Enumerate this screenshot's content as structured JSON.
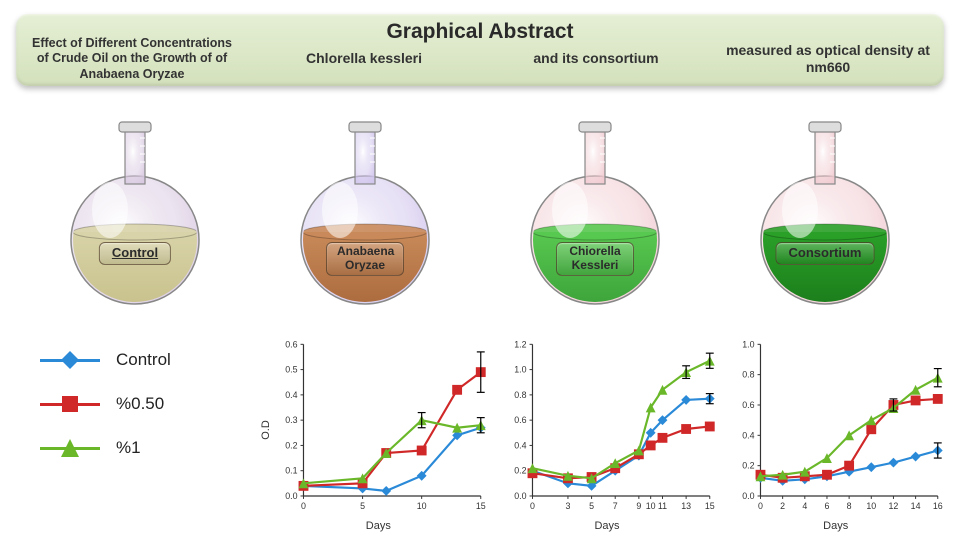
{
  "banner": {
    "title": "Graphical Abstract",
    "cells": [
      "Effect of Different Concentrations of Crude Oil on the Growth of of Anabaena Oryzae",
      "Chlorella kessleri",
      "and its consortium",
      "measured as optical density at nm660"
    ]
  },
  "flasks": [
    {
      "label": "Control",
      "liquid_top": "#d8d3a8",
      "liquid_bot": "#c7c08a",
      "glass": "#d8c8e0",
      "two": false
    },
    {
      "label": "Anabaena Oryzae",
      "liquid_top": "#c98a5a",
      "liquid_bot": "#a8683a",
      "glass": "#d0c4ec",
      "two": true
    },
    {
      "label": "Chiorella Kessleri",
      "liquid_top": "#58c850",
      "liquid_bot": "#3aa038",
      "glass": "#f0cad0",
      "two": true
    },
    {
      "label": "Consortium",
      "liquid_top": "#2aa028",
      "liquid_bot": "#1a7a1a",
      "glass": "#f0cad0",
      "two": false
    }
  ],
  "legend": {
    "items": [
      {
        "label": "Control",
        "color": "#2a8ad8",
        "marker": "diamond"
      },
      {
        "label": "%0.50",
        "color": "#d02828",
        "marker": "square"
      },
      {
        "label": "%1",
        "color": "#6ab82a",
        "marker": "triangle"
      }
    ]
  },
  "charts": [
    {
      "ylabel": "O.D",
      "xlabel": "Days",
      "ylim": [
        0,
        0.6
      ],
      "ytick_step": 0.1,
      "ytick_decimals": 1,
      "xlim": [
        0,
        15
      ],
      "xticks": [
        0,
        5,
        10,
        15
      ],
      "series": [
        {
          "name": "Control",
          "pts": [
            [
              0,
              0.04
            ],
            [
              5,
              0.03
            ],
            [
              7,
              0.02
            ],
            [
              10,
              0.08
            ],
            [
              13,
              0.24
            ],
            [
              15,
              0.27
            ]
          ]
        },
        {
          "name": "%0.50",
          "pts": [
            [
              0,
              0.04
            ],
            [
              5,
              0.05
            ],
            [
              7,
              0.17
            ],
            [
              10,
              0.18
            ],
            [
              13,
              0.42
            ],
            [
              15,
              0.49
            ]
          ]
        },
        {
          "name": "%1",
          "pts": [
            [
              0,
              0.05
            ],
            [
              5,
              0.07
            ],
            [
              7,
              0.17
            ],
            [
              10,
              0.3
            ],
            [
              13,
              0.27
            ],
            [
              15,
              0.28
            ]
          ]
        }
      ],
      "err": [
        [
          15,
          0.49,
          0.08
        ],
        [
          15,
          0.28,
          0.03
        ],
        [
          10,
          0.3,
          0.03
        ]
      ]
    },
    {
      "ylabel": "",
      "xlabel": "Days",
      "ylim": [
        0,
        1.2
      ],
      "ytick_step": 0.2,
      "ytick_decimals": 1,
      "xlim": [
        0,
        15
      ],
      "xticks": [
        0,
        3,
        5,
        7,
        9,
        10,
        11,
        13,
        15
      ],
      "series": [
        {
          "name": "Control",
          "pts": [
            [
              0,
              0.2
            ],
            [
              3,
              0.1
            ],
            [
              5,
              0.08
            ],
            [
              7,
              0.2
            ],
            [
              9,
              0.32
            ],
            [
              10,
              0.5
            ],
            [
              11,
              0.6
            ],
            [
              13,
              0.76
            ],
            [
              15,
              0.77
            ]
          ]
        },
        {
          "name": "%0.50",
          "pts": [
            [
              0,
              0.18
            ],
            [
              3,
              0.14
            ],
            [
              5,
              0.15
            ],
            [
              7,
              0.22
            ],
            [
              9,
              0.33
            ],
            [
              10,
              0.4
            ],
            [
              11,
              0.46
            ],
            [
              13,
              0.53
            ],
            [
              15,
              0.55
            ]
          ]
        },
        {
          "name": "%1",
          "pts": [
            [
              0,
              0.22
            ],
            [
              3,
              0.16
            ],
            [
              5,
              0.14
            ],
            [
              7,
              0.26
            ],
            [
              9,
              0.36
            ],
            [
              10,
              0.7
            ],
            [
              11,
              0.84
            ],
            [
              13,
              0.98
            ],
            [
              15,
              1.07
            ]
          ]
        }
      ],
      "err": [
        [
          15,
          1.07,
          0.06
        ],
        [
          13,
          0.98,
          0.05
        ],
        [
          15,
          0.77,
          0.04
        ]
      ]
    },
    {
      "ylabel": "",
      "xlabel": "Days",
      "ylim": [
        0,
        1.0
      ],
      "ytick_step": 0.2,
      "ytick_decimals": 1,
      "xlim": [
        0,
        16
      ],
      "xticks": [
        0,
        2,
        4,
        6,
        8,
        10,
        12,
        14,
        16
      ],
      "series": [
        {
          "name": "Control",
          "pts": [
            [
              0,
              0.12
            ],
            [
              2,
              0.1
            ],
            [
              4,
              0.11
            ],
            [
              6,
              0.13
            ],
            [
              8,
              0.16
            ],
            [
              10,
              0.19
            ],
            [
              12,
              0.22
            ],
            [
              14,
              0.26
            ],
            [
              16,
              0.3
            ]
          ]
        },
        {
          "name": "%0.50",
          "pts": [
            [
              0,
              0.14
            ],
            [
              2,
              0.12
            ],
            [
              4,
              0.13
            ],
            [
              6,
              0.14
            ],
            [
              8,
              0.2
            ],
            [
              10,
              0.44
            ],
            [
              12,
              0.6
            ],
            [
              14,
              0.63
            ],
            [
              16,
              0.64
            ]
          ]
        },
        {
          "name": "%1",
          "pts": [
            [
              0,
              0.13
            ],
            [
              2,
              0.14
            ],
            [
              4,
              0.16
            ],
            [
              6,
              0.25
            ],
            [
              8,
              0.4
            ],
            [
              10,
              0.5
            ],
            [
              12,
              0.58
            ],
            [
              14,
              0.7
            ],
            [
              16,
              0.78
            ]
          ]
        }
      ],
      "err": [
        [
          16,
          0.78,
          0.06
        ],
        [
          16,
          0.3,
          0.05
        ],
        [
          12,
          0.6,
          0.04
        ]
      ]
    }
  ],
  "colors": {
    "Control": "#2a8ad8",
    "%0.50": "#d02828",
    "%1": "#6ab82a"
  },
  "markers": {
    "Control": "diamond",
    "%0.50": "square",
    "%1": "triangle"
  }
}
